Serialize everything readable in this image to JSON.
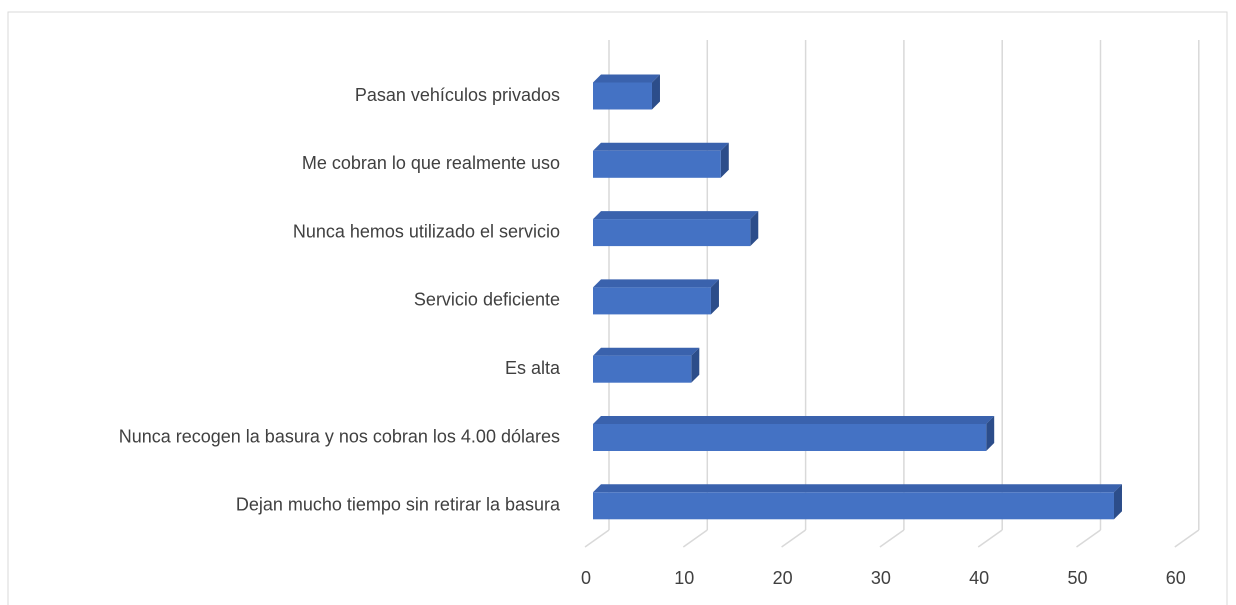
{
  "chart_data": {
    "type": "bar3d_horizontal",
    "categories": [
      "Pasan vehículos privados",
      "Me cobran lo que realmente uso",
      "Nunca hemos utilizado el servicio",
      "Servicio deficiente",
      "Es alta",
      "Nunca recogen la basura y nos cobran los 4.00 dólares",
      "Dejan mucho tiempo sin retirar la basura"
    ],
    "values": [
      6,
      13,
      16,
      12,
      10,
      40,
      53
    ],
    "color": "#4472c4",
    "xlim": [
      0,
      60
    ],
    "xticks": [
      0,
      10,
      20,
      30,
      40,
      50,
      60
    ],
    "grid": true
  }
}
